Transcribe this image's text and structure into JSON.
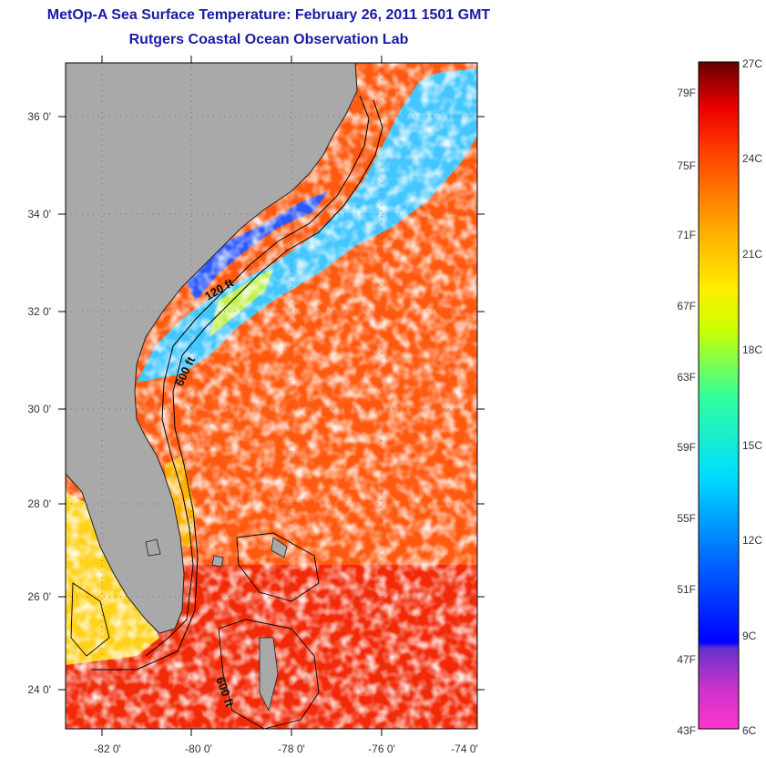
{
  "header": {
    "title": "MetOp-A Sea Surface Temperature:  February 26, 2011 1501 GMT",
    "subtitle": "Rutgers Coastal Ocean Observation Lab"
  },
  "map": {
    "lon_labels": [
      "-82 0'",
      "-80 0'",
      "-78 0'",
      "-76 0'",
      "-74 0'"
    ],
    "lat_labels": [
      "36 0'",
      "34 0'",
      "32 0'",
      "30 0'",
      "28 0'",
      "26 0'",
      "24 0'"
    ],
    "lon_range": [
      -83.0,
      -73.0
    ],
    "lat_range": [
      23.0,
      37.0
    ],
    "contour_labels": [
      "120 ft",
      "600 ft",
      "600 ft"
    ],
    "colors": {
      "land": "#a9a9a9",
      "cloud": "#ffffff",
      "contour": "#000000"
    }
  },
  "colorbar": {
    "fahrenheit_labels": [
      "79F",
      "75F",
      "71F",
      "67F",
      "63F",
      "59F",
      "55F",
      "51F",
      "47F",
      "43F"
    ],
    "celsius_labels": [
      "27C",
      "24C",
      "21C",
      "18C",
      "15C",
      "12C",
      "9C",
      "6C"
    ],
    "range_c": [
      6,
      27
    ],
    "colors": [
      "#ff33cc",
      "#9933cc",
      "#0000ff",
      "#0088ff",
      "#00ffff",
      "#66ff66",
      "#ffff00",
      "#ff9900",
      "#ff3300",
      "#cc0000",
      "#660000"
    ]
  }
}
